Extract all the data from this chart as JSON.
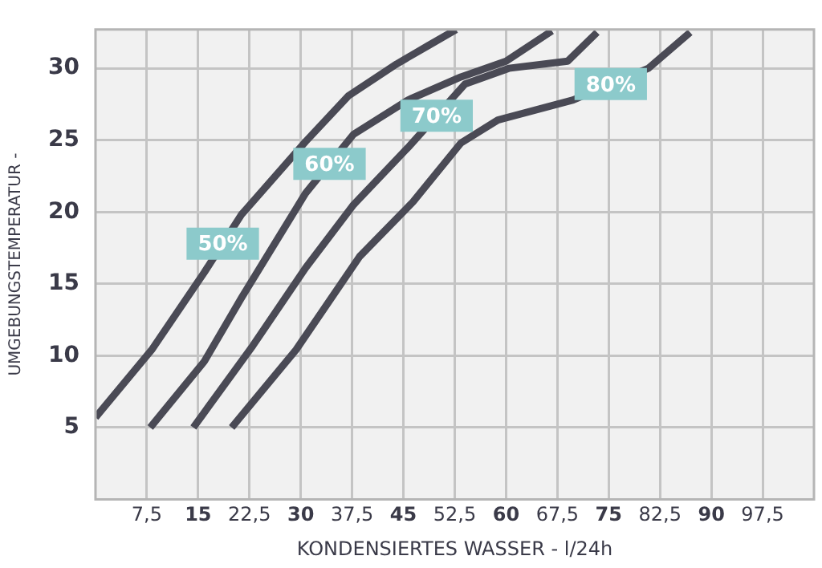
{
  "chart_data": {
    "type": "line",
    "xlabel": "KONDENSIERTES WASSER - l/24h",
    "ylabel": "UMGEBUNGSTEMPERATUR -",
    "xlim": [
      0,
      105
    ],
    "ylim": [
      0,
      32.7
    ],
    "xticks": [
      {
        "value": 7.5,
        "label": "7,5"
      },
      15,
      {
        "value": 22.5,
        "label": "22,5"
      },
      30,
      {
        "value": 37.5,
        "label": "37,5"
      },
      45,
      {
        "value": 52.5,
        "label": "52,5"
      },
      60,
      {
        "value": 67.5,
        "label": "67,5"
      },
      75,
      {
        "value": 82.5,
        "label": "82,5"
      },
      90,
      {
        "value": 97.5,
        "label": "97,5"
      }
    ],
    "yticks": [
      5,
      10,
      15,
      20,
      25,
      30
    ],
    "grid": true,
    "marker": "none",
    "line_style": "solid",
    "series": [
      {
        "name": "50%",
        "color": "#4a4a55",
        "x": [
          0,
          8.2,
          15.9,
          21.3,
          30.7,
          37,
          44,
          48.7,
          52.7
        ],
        "values": [
          5.7,
          10.4,
          15.8,
          19.8,
          24.9,
          28.1,
          30.3,
          31.6,
          32.7
        ]
      },
      {
        "name": "60%",
        "color": "#4a4a55",
        "x": [
          8,
          15.9,
          21.3,
          30.7,
          37.7,
          45.7,
          53.4,
          60,
          66.7
        ],
        "values": [
          5,
          9.6,
          14,
          21.3,
          25.4,
          27.8,
          29.4,
          30.5,
          32.6
        ]
      },
      {
        "name": "70%",
        "color": "#4a4a55",
        "x": [
          14.3,
          23,
          30.7,
          37.7,
          45.7,
          54,
          60.4,
          69,
          73.3
        ],
        "values": [
          5,
          10.7,
          16.1,
          20.5,
          24.5,
          28.9,
          30,
          30.5,
          32.5
        ]
      },
      {
        "name": "80%",
        "color": "#4a4a55",
        "x": [
          19.9,
          29.3,
          38.6,
          46.4,
          53.4,
          58.8,
          69.8,
          80.8,
          86.9
        ],
        "values": [
          5,
          10.4,
          16.9,
          20.7,
          24.8,
          26.4,
          27.8,
          30,
          32.5
        ]
      }
    ]
  }
}
